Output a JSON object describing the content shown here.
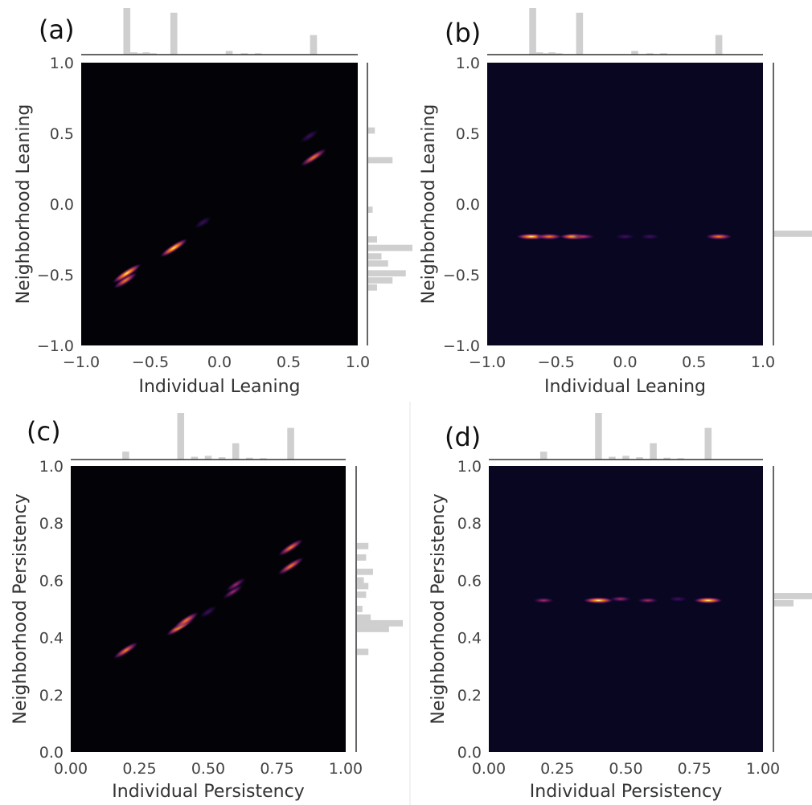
{
  "chart_data": [
    {
      "panel_label": "(a)",
      "type": "heatmap",
      "xlabel": "Individual Leaning",
      "ylabel": "Neighborhood Leaning",
      "xlim": [
        -1.0,
        1.0
      ],
      "ylim": [
        -1.0,
        1.0
      ],
      "xticks": [
        "−1.0",
        "−0.5",
        "0.0",
        "0.5",
        "1.0"
      ],
      "yticks": [
        "−1.0",
        "−0.5",
        "0.0",
        "0.5",
        "1.0"
      ],
      "background": "#030307",
      "grid": false,
      "density_clusters": [
        {
          "x": -0.67,
          "y": -0.49,
          "intensity": 1.0
        },
        {
          "x": -0.68,
          "y": -0.54,
          "intensity": 0.6
        },
        {
          "x": -0.33,
          "y": -0.31,
          "intensity": 0.9
        },
        {
          "x": -0.12,
          "y": -0.13,
          "intensity": 0.1
        },
        {
          "x": 0.68,
          "y": 0.33,
          "intensity": 0.8
        },
        {
          "x": 0.65,
          "y": 0.48,
          "intensity": 0.2
        }
      ],
      "marginal_x": [
        {
          "x": -0.67,
          "height": 1.0
        },
        {
          "x": -0.62,
          "height": 0.05
        },
        {
          "x": -0.58,
          "height": 0.03
        },
        {
          "x": -0.53,
          "height": 0.05
        },
        {
          "x": -0.48,
          "height": 0.03
        },
        {
          "x": -0.33,
          "height": 0.9
        },
        {
          "x": 0.07,
          "height": 0.08
        },
        {
          "x": 0.18,
          "height": 0.03
        },
        {
          "x": 0.28,
          "height": 0.03
        },
        {
          "x": 0.68,
          "height": 0.42
        }
      ],
      "marginal_y": [
        {
          "y": 0.52,
          "width": 0.15
        },
        {
          "y": 0.31,
          "width": 0.55
        },
        {
          "y": -0.04,
          "width": 0.1
        },
        {
          "y": -0.25,
          "width": 0.2
        },
        {
          "y": -0.31,
          "width": 1.0
        },
        {
          "y": -0.37,
          "width": 0.3
        },
        {
          "y": -0.42,
          "width": 0.45
        },
        {
          "y": -0.49,
          "width": 0.85
        },
        {
          "y": -0.54,
          "width": 0.55
        },
        {
          "y": -0.59,
          "width": 0.2
        }
      ]
    },
    {
      "panel_label": "(b)",
      "type": "heatmap",
      "xlabel": "Individual Leaning",
      "ylabel": "Neighborhood Leaning",
      "xlim": [
        -1.0,
        1.0
      ],
      "ylim": [
        -1.0,
        1.0
      ],
      "xticks": [
        "−1.0",
        "−0.5",
        "0.0",
        "0.5",
        "1.0"
      ],
      "yticks": [
        "−1.0",
        "−0.5",
        "0.0",
        "0.5",
        "1.0"
      ],
      "background": "#080620",
      "grid": false,
      "density_clusters": [
        {
          "x": -0.68,
          "y": -0.23,
          "intensity": 0.95
        },
        {
          "x": -0.55,
          "y": -0.23,
          "intensity": 0.6
        },
        {
          "x": -0.37,
          "y": -0.23,
          "intensity": 0.9
        },
        {
          "x": -0.3,
          "y": -0.23,
          "intensity": 0.55
        },
        {
          "x": 0.0,
          "y": -0.23,
          "intensity": 0.25
        },
        {
          "x": 0.18,
          "y": -0.23,
          "intensity": 0.2
        },
        {
          "x": 0.68,
          "y": -0.23,
          "intensity": 0.7
        }
      ],
      "marginal_x": [
        {
          "x": -0.67,
          "height": 1.0
        },
        {
          "x": -0.62,
          "height": 0.05
        },
        {
          "x": -0.58,
          "height": 0.03
        },
        {
          "x": -0.53,
          "height": 0.05
        },
        {
          "x": -0.48,
          "height": 0.03
        },
        {
          "x": -0.33,
          "height": 0.9
        },
        {
          "x": 0.07,
          "height": 0.08
        },
        {
          "x": 0.18,
          "height": 0.03
        },
        {
          "x": 0.28,
          "height": 0.03
        },
        {
          "x": 0.68,
          "height": 0.42
        }
      ],
      "marginal_y": [
        {
          "y": -0.21,
          "width": 1.0
        }
      ]
    },
    {
      "panel_label": "(c)",
      "type": "heatmap",
      "xlabel": "Individual Persistency",
      "ylabel": "Neighborhood Persistency",
      "xlim": [
        0.0,
        1.0
      ],
      "ylim": [
        0.0,
        1.0
      ],
      "xticks": [
        "0.00",
        "0.25",
        "0.50",
        "0.75",
        "1.00"
      ],
      "yticks": [
        "0.0",
        "0.2",
        "0.4",
        "0.6",
        "0.8",
        "1.0"
      ],
      "background": "#030307",
      "grid": false,
      "density_clusters": [
        {
          "x": 0.2,
          "y": 0.355,
          "intensity": 0.7
        },
        {
          "x": 0.4,
          "y": 0.44,
          "intensity": 1.0
        },
        {
          "x": 0.42,
          "y": 0.46,
          "intensity": 0.7
        },
        {
          "x": 0.5,
          "y": 0.49,
          "intensity": 0.15
        },
        {
          "x": 0.59,
          "y": 0.56,
          "intensity": 0.5
        },
        {
          "x": 0.6,
          "y": 0.585,
          "intensity": 0.45
        },
        {
          "x": 0.8,
          "y": 0.65,
          "intensity": 0.8
        },
        {
          "x": 0.8,
          "y": 0.715,
          "intensity": 0.7
        }
      ],
      "marginal_x": [
        {
          "x": 0.2,
          "height": 0.17
        },
        {
          "x": 0.4,
          "height": 1.0
        },
        {
          "x": 0.45,
          "height": 0.06
        },
        {
          "x": 0.5,
          "height": 0.08
        },
        {
          "x": 0.55,
          "height": 0.05
        },
        {
          "x": 0.6,
          "height": 0.35
        },
        {
          "x": 0.65,
          "height": 0.04
        },
        {
          "x": 0.7,
          "height": 0.03
        },
        {
          "x": 0.8,
          "height": 0.68
        }
      ],
      "marginal_y": [
        {
          "y": 0.72,
          "width": 0.25
        },
        {
          "y": 0.68,
          "width": 0.2
        },
        {
          "y": 0.63,
          "width": 0.35
        },
        {
          "y": 0.6,
          "width": 0.15
        },
        {
          "y": 0.58,
          "width": 0.25
        },
        {
          "y": 0.55,
          "width": 0.2
        },
        {
          "y": 0.5,
          "width": 0.12
        },
        {
          "y": 0.47,
          "width": 0.3
        },
        {
          "y": 0.45,
          "width": 1.0
        },
        {
          "y": 0.43,
          "width": 0.7
        },
        {
          "y": 0.35,
          "width": 0.25
        }
      ]
    },
    {
      "panel_label": "(d)",
      "type": "heatmap",
      "xlabel": "Individual Persistency",
      "ylabel": "Neighborhood Persistency",
      "xlim": [
        0.0,
        1.0
      ],
      "ylim": [
        0.0,
        1.0
      ],
      "xticks": [
        "0.00",
        "0.25",
        "0.50",
        "0.75",
        "1.00"
      ],
      "yticks": [
        "0.0",
        "0.2",
        "0.4",
        "0.6",
        "0.8",
        "1.0"
      ],
      "background": "#080620",
      "grid": false,
      "density_clusters": [
        {
          "x": 0.2,
          "y": 0.53,
          "intensity": 0.4
        },
        {
          "x": 0.4,
          "y": 0.53,
          "intensity": 1.0
        },
        {
          "x": 0.48,
          "y": 0.535,
          "intensity": 0.45
        },
        {
          "x": 0.58,
          "y": 0.53,
          "intensity": 0.4
        },
        {
          "x": 0.69,
          "y": 0.535,
          "intensity": 0.2
        },
        {
          "x": 0.8,
          "y": 0.53,
          "intensity": 0.85
        }
      ],
      "marginal_x": [
        {
          "x": 0.2,
          "height": 0.17
        },
        {
          "x": 0.4,
          "height": 1.0
        },
        {
          "x": 0.45,
          "height": 0.06
        },
        {
          "x": 0.5,
          "height": 0.08
        },
        {
          "x": 0.55,
          "height": 0.05
        },
        {
          "x": 0.6,
          "height": 0.35
        },
        {
          "x": 0.65,
          "height": 0.04
        },
        {
          "x": 0.7,
          "height": 0.03
        },
        {
          "x": 0.8,
          "height": 0.68
        }
      ],
      "marginal_y": [
        {
          "y": 0.545,
          "width": 1.0
        },
        {
          "y": 0.52,
          "width": 0.5
        }
      ]
    }
  ]
}
